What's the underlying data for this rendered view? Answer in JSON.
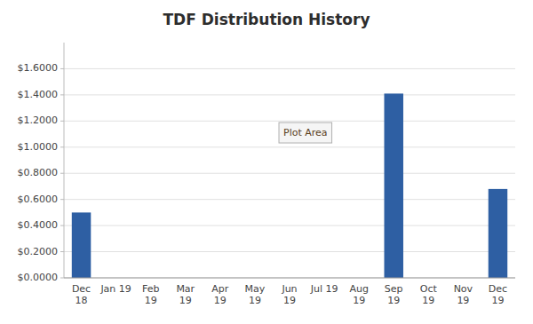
{
  "chart_data": {
    "type": "bar",
    "title": "TDF Distribution History",
    "categories": [
      "Dec\n18",
      "Jan 19",
      "Feb\n19",
      "Mar\n19",
      "Apr\n19",
      "May\n19",
      "Jun\n19",
      "Jul 19",
      "Aug\n19",
      "Sep\n19",
      "Oct\n19",
      "Nov\n19",
      "Dec\n19"
    ],
    "values": [
      0.5,
      0.0,
      0.0,
      0.0,
      0.0,
      0.0,
      0.0,
      0.0,
      0.0,
      1.41,
      0.0,
      0.0,
      0.68
    ],
    "color": "#2E5FA3",
    "ylim": [
      0,
      1.8
    ],
    "yticks": [
      {
        "value": 0.0,
        "label": "$0.0000"
      },
      {
        "value": 0.2,
        "label": "$0.2000"
      },
      {
        "value": 0.4,
        "label": "$0.4000"
      },
      {
        "value": 0.6,
        "label": "$0.6000"
      },
      {
        "value": 0.8,
        "label": "$0.8000"
      },
      {
        "value": 1.0,
        "label": "$1.0000"
      },
      {
        "value": 1.2,
        "label": "$1.2000"
      },
      {
        "value": 1.4,
        "label": "$1.4000"
      },
      {
        "value": 1.6,
        "label": "$1.6000"
      }
    ],
    "grid": true,
    "annotation": "Plot Area"
  }
}
